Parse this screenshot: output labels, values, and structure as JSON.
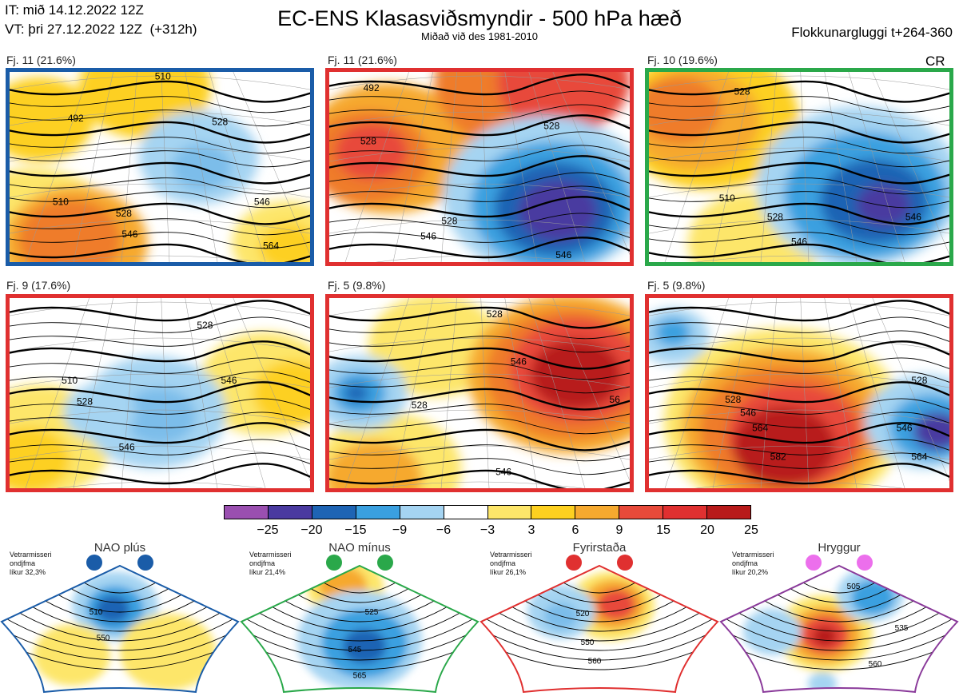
{
  "header": {
    "init_time": "IT: mið 14.12.2022 12Z",
    "valid_time": "VT: þri 27.12.2022 12Z",
    "lead_time": "(+312h)",
    "title": "EC-ENS Klasasviðsmyndir - 500 hPa hæð",
    "subtitle": "Miðað við des 1981-2010",
    "cluster_window": "Flokkunargluggi t+264-360",
    "cr": "CR"
  },
  "clusters": [
    {
      "label": "Fj. 11 (21.6%)",
      "border_color": "#1a5ca8",
      "blobs": [
        {
          "cx": 8,
          "cy": 85,
          "r": 28,
          "c": "#fde66a"
        },
        {
          "cx": 22,
          "cy": 90,
          "r": 24,
          "c": "#f6a92f"
        },
        {
          "cx": 20,
          "cy": 88,
          "r": 17,
          "c": "#ef7c2a"
        },
        {
          "cx": 45,
          "cy": 8,
          "r": 22,
          "c": "#fdd020"
        },
        {
          "cx": 10,
          "cy": 25,
          "r": 18,
          "c": "#fdd020"
        },
        {
          "cx": 63,
          "cy": 45,
          "r": 20,
          "c": "#a5d4f2"
        },
        {
          "cx": 64,
          "cy": 50,
          "r": 10,
          "c": "#7cbdea"
        },
        {
          "cx": 92,
          "cy": 90,
          "r": 18,
          "c": "#fde66a"
        },
        {
          "cx": 93,
          "cy": 92,
          "r": 10,
          "c": "#fdd020"
        }
      ],
      "labels": [
        {
          "x": 22,
          "y": 26,
          "t": "492"
        },
        {
          "x": 17,
          "y": 70,
          "t": "510"
        },
        {
          "x": 38,
          "y": 76,
          "t": "528"
        },
        {
          "x": 40,
          "y": 87,
          "t": "546"
        },
        {
          "x": 84,
          "y": 70,
          "t": "546"
        },
        {
          "x": 87,
          "y": 93,
          "t": "564"
        },
        {
          "x": 70,
          "y": 28,
          "t": "528"
        },
        {
          "x": 51,
          "y": 4,
          "t": "510"
        }
      ]
    },
    {
      "label": "Fj. 11 (21.6%)",
      "border_color": "#e03030",
      "blobs": [
        {
          "cx": 20,
          "cy": 40,
          "r": 28,
          "c": "#f6a92f"
        },
        {
          "cx": 13,
          "cy": 45,
          "r": 20,
          "c": "#ef7c2a"
        },
        {
          "cx": 14,
          "cy": 42,
          "r": 12,
          "c": "#e84a3a"
        },
        {
          "cx": 65,
          "cy": 5,
          "r": 30,
          "c": "#ef7c2a"
        },
        {
          "cx": 78,
          "cy": 5,
          "r": 22,
          "c": "#e84a3a"
        },
        {
          "cx": 72,
          "cy": 65,
          "r": 34,
          "c": "#a5d4f2"
        },
        {
          "cx": 74,
          "cy": 70,
          "r": 27,
          "c": "#3aa0e0"
        },
        {
          "cx": 75,
          "cy": 72,
          "r": 20,
          "c": "#1e64b4"
        },
        {
          "cx": 76,
          "cy": 73,
          "r": 13,
          "c": "#4a3aa0"
        }
      ],
      "labels": [
        {
          "x": 14,
          "y": 10,
          "t": "492"
        },
        {
          "x": 13,
          "y": 38,
          "t": "528"
        },
        {
          "x": 40,
          "y": 80,
          "t": "528"
        },
        {
          "x": 33,
          "y": 88,
          "t": "546"
        },
        {
          "x": 78,
          "y": 98,
          "t": "546"
        },
        {
          "x": 74,
          "y": 30,
          "t": "528"
        }
      ]
    },
    {
      "label": "Fj. 10 (19.6%)",
      "border_color": "#2aa84a",
      "blobs": [
        {
          "cx": 20,
          "cy": 25,
          "r": 30,
          "c": "#fdd020"
        },
        {
          "cx": 15,
          "cy": 25,
          "r": 22,
          "c": "#f6a92f"
        },
        {
          "cx": 10,
          "cy": 20,
          "r": 14,
          "c": "#ef7c2a"
        },
        {
          "cx": 35,
          "cy": 90,
          "r": 22,
          "c": "#fde66a"
        },
        {
          "cx": 70,
          "cy": 60,
          "r": 34,
          "c": "#a5d4f2"
        },
        {
          "cx": 72,
          "cy": 65,
          "r": 27,
          "c": "#3aa0e0"
        },
        {
          "cx": 75,
          "cy": 68,
          "r": 18,
          "c": "#1e64b4"
        },
        {
          "cx": 78,
          "cy": 70,
          "r": 9,
          "c": "#4a3aa0"
        }
      ],
      "labels": [
        {
          "x": 26,
          "y": 68,
          "t": "510"
        },
        {
          "x": 42,
          "y": 78,
          "t": "528"
        },
        {
          "x": 50,
          "y": 91,
          "t": "546"
        },
        {
          "x": 88,
          "y": 78,
          "t": "546"
        },
        {
          "x": 31,
          "y": 12,
          "t": "528"
        }
      ]
    },
    {
      "label": "Fj. 9 (17.6%)",
      "border_color": "#e03030",
      "blobs": [
        {
          "cx": 10,
          "cy": 75,
          "r": 24,
          "c": "#fde66a"
        },
        {
          "cx": 6,
          "cy": 85,
          "r": 14,
          "c": "#fdd020"
        },
        {
          "cx": 85,
          "cy": 45,
          "r": 22,
          "c": "#fde66a"
        },
        {
          "cx": 95,
          "cy": 50,
          "r": 14,
          "c": "#fdd020"
        },
        {
          "cx": 48,
          "cy": 60,
          "r": 24,
          "c": "#a5d4f2"
        },
        {
          "cx": 50,
          "cy": 62,
          "r": 12,
          "c": "#7cbdea"
        },
        {
          "cx": 30,
          "cy": 60,
          "r": 12,
          "c": "#a5d4f2"
        }
      ],
      "labels": [
        {
          "x": 20,
          "y": 45,
          "t": "510"
        },
        {
          "x": 25,
          "y": 56,
          "t": "528"
        },
        {
          "x": 39,
          "y": 80,
          "t": "546"
        },
        {
          "x": 65,
          "y": 16,
          "t": "528"
        },
        {
          "x": 73,
          "y": 45,
          "t": "546"
        }
      ]
    },
    {
      "label": "Fj. 5 (9.8%)",
      "border_color": "#e03030",
      "blobs": [
        {
          "cx": 35,
          "cy": 25,
          "r": 22,
          "c": "#fde66a"
        },
        {
          "cx": 20,
          "cy": 90,
          "r": 24,
          "c": "#fde66a"
        },
        {
          "cx": 15,
          "cy": 95,
          "r": 16,
          "c": "#f6a92f"
        },
        {
          "cx": 80,
          "cy": 40,
          "r": 34,
          "c": "#f6a92f"
        },
        {
          "cx": 80,
          "cy": 40,
          "r": 28,
          "c": "#ef7c2a"
        },
        {
          "cx": 82,
          "cy": 38,
          "r": 22,
          "c": "#e84a3a"
        },
        {
          "cx": 82,
          "cy": 40,
          "r": 15,
          "c": "#b81a1a"
        },
        {
          "cx": 10,
          "cy": 50,
          "r": 16,
          "c": "#a5d4f2"
        },
        {
          "cx": 10,
          "cy": 50,
          "r": 9,
          "c": "#3aa0e0"
        },
        {
          "cx": 9,
          "cy": 50,
          "r": 4,
          "c": "#1e64b4"
        }
      ],
      "labels": [
        {
          "x": 30,
          "y": 58,
          "t": "528"
        },
        {
          "x": 63,
          "y": 35,
          "t": "546"
        },
        {
          "x": 58,
          "y": 93,
          "t": "546"
        },
        {
          "x": 55,
          "y": 10,
          "t": "528"
        },
        {
          "x": 95,
          "y": 55,
          "t": "56"
        }
      ]
    },
    {
      "label": "Fj. 5 (9.8%)",
      "border_color": "#e03030",
      "blobs": [
        {
          "cx": 45,
          "cy": 65,
          "r": 40,
          "c": "#fde66a"
        },
        {
          "cx": 45,
          "cy": 68,
          "r": 34,
          "c": "#f6a92f"
        },
        {
          "cx": 45,
          "cy": 70,
          "r": 28,
          "c": "#ef7c2a"
        },
        {
          "cx": 48,
          "cy": 72,
          "r": 22,
          "c": "#e84a3a"
        },
        {
          "cx": 45,
          "cy": 78,
          "r": 17,
          "c": "#b81a1a"
        },
        {
          "cx": 8,
          "cy": 20,
          "r": 12,
          "c": "#a5d4f2"
        },
        {
          "cx": 8,
          "cy": 18,
          "r": 6,
          "c": "#3aa0e0"
        },
        {
          "cx": 92,
          "cy": 65,
          "r": 20,
          "c": "#a5d4f2"
        },
        {
          "cx": 94,
          "cy": 68,
          "r": 14,
          "c": "#3aa0e0"
        },
        {
          "cx": 96,
          "cy": 70,
          "r": 8,
          "c": "#4a3aa0"
        }
      ],
      "labels": [
        {
          "x": 28,
          "y": 55,
          "t": "528"
        },
        {
          "x": 33,
          "y": 62,
          "t": "546"
        },
        {
          "x": 37,
          "y": 70,
          "t": "564"
        },
        {
          "x": 43,
          "y": 85,
          "t": "582"
        },
        {
          "x": 85,
          "y": 70,
          "t": "546"
        },
        {
          "x": 90,
          "y": 85,
          "t": "564"
        },
        {
          "x": 90,
          "y": 45,
          "t": "528"
        }
      ]
    }
  ],
  "colorbar": {
    "colors": [
      "#9a4fb0",
      "#4a3aa0",
      "#1e64b4",
      "#3aa0e0",
      "#a5d4f2",
      "#ffffff",
      "#fde66a",
      "#fdd020",
      "#f6a92f",
      "#e84a3a",
      "#e03030",
      "#b81a1a"
    ],
    "ticks": [
      "−25",
      "−20",
      "−15",
      "−9",
      "−6",
      "−3",
      "3",
      "6",
      "9",
      "15",
      "20",
      "25"
    ]
  },
  "regimes": [
    {
      "name": "NAO plús",
      "desc1": "Vetrarmisseri",
      "desc2": "ondjfma",
      "desc3": "líkur 32,3%",
      "border": "#1a5ca8",
      "dot": "#1a5ca8",
      "blobs": [
        {
          "cx": 48,
          "cy": 38,
          "r": 18,
          "c": "#a5d4f2"
        },
        {
          "cx": 48,
          "cy": 40,
          "r": 12,
          "c": "#3aa0e0"
        },
        {
          "cx": 47,
          "cy": 40,
          "r": 7,
          "c": "#1e64b4"
        },
        {
          "cx": 70,
          "cy": 70,
          "r": 20,
          "c": "#fde66a"
        },
        {
          "cx": 30,
          "cy": 72,
          "r": 16,
          "c": "#fde66a"
        }
      ],
      "labels": [
        {
          "x": 40,
          "y": 44,
          "t": "510"
        },
        {
          "x": 43,
          "y": 62,
          "t": "550"
        }
      ]
    },
    {
      "name": "NAO mínus",
      "desc1": "Vetrarmisseri",
      "desc2": "ondjfma",
      "desc3": "líkur 21,4%",
      "border": "#2aa84a",
      "dot": "#2aa84a",
      "blobs": [
        {
          "cx": 44,
          "cy": 25,
          "r": 16,
          "c": "#fde66a"
        },
        {
          "cx": 43,
          "cy": 24,
          "r": 10,
          "c": "#f6a92f"
        },
        {
          "cx": 50,
          "cy": 62,
          "r": 26,
          "c": "#a5d4f2"
        },
        {
          "cx": 52,
          "cy": 64,
          "r": 18,
          "c": "#3aa0e0"
        },
        {
          "cx": 52,
          "cy": 66,
          "r": 9,
          "c": "#1e64b4"
        }
      ],
      "labels": [
        {
          "x": 55,
          "y": 44,
          "t": "525"
        },
        {
          "x": 48,
          "y": 70,
          "t": "545"
        },
        {
          "x": 50,
          "y": 88,
          "t": "565"
        }
      ]
    },
    {
      "name": "Fyrirstaða",
      "desc1": "Vetrarmisseri",
      "desc2": "ondjfma",
      "desc3": "líkur 26,1%",
      "border": "#e03030",
      "dot": "#e03030",
      "blobs": [
        {
          "cx": 55,
          "cy": 38,
          "r": 18,
          "c": "#fde66a"
        },
        {
          "cx": 56,
          "cy": 37,
          "r": 13,
          "c": "#f6a92f"
        },
        {
          "cx": 57,
          "cy": 37,
          "r": 8,
          "c": "#e84a3a"
        },
        {
          "cx": 34,
          "cy": 42,
          "r": 14,
          "c": "#a5d4f2"
        },
        {
          "cx": 34,
          "cy": 45,
          "r": 7,
          "c": "#7cbdea"
        }
      ],
      "labels": [
        {
          "x": 43,
          "y": 45,
          "t": "520"
        },
        {
          "x": 45,
          "y": 65,
          "t": "550"
        },
        {
          "x": 48,
          "y": 78,
          "t": "560"
        }
      ]
    },
    {
      "name": "Hryggur",
      "desc1": "Vetrarmisseri",
      "desc2": "ondjfma",
      "desc3": "líkur 20,2%",
      "border": "#8a3a9a",
      "dot": "#ec6fec",
      "blobs": [
        {
          "cx": 44,
          "cy": 57,
          "r": 20,
          "c": "#fde66a"
        },
        {
          "cx": 44,
          "cy": 58,
          "r": 15,
          "c": "#f6a92f"
        },
        {
          "cx": 44,
          "cy": 58,
          "r": 10,
          "c": "#e84a3a"
        },
        {
          "cx": 44,
          "cy": 59,
          "r": 5,
          "c": "#b81a1a"
        },
        {
          "cx": 63,
          "cy": 30,
          "r": 14,
          "c": "#a5d4f2"
        },
        {
          "cx": 64,
          "cy": 32,
          "r": 9,
          "c": "#3aa0e0"
        },
        {
          "cx": 22,
          "cy": 56,
          "r": 12,
          "c": "#a5d4f2"
        },
        {
          "cx": 43,
          "cy": 92,
          "r": 6,
          "c": "#a5d4f2"
        }
      ],
      "labels": [
        {
          "x": 56,
          "y": 26,
          "t": "505"
        },
        {
          "x": 76,
          "y": 55,
          "t": "535"
        },
        {
          "x": 65,
          "y": 80,
          "t": "560"
        }
      ]
    }
  ]
}
